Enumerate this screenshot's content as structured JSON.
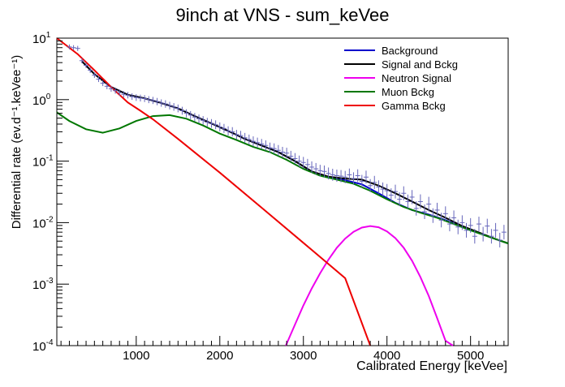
{
  "chart_data": {
    "type": "line",
    "title": "9inch at VNS - sum_keVee",
    "xlabel": "Calibrated Energy [keVee]",
    "ylabel": "Differential rate (ev.d⁻¹.keVee⁻¹)",
    "xlim": [
      50,
      5450
    ],
    "ylim": [
      0.0001,
      10
    ],
    "yscale": "log",
    "x_ticks": [
      1000,
      2000,
      3000,
      4000,
      5000
    ],
    "y_ticks": [
      {
        "value": 10,
        "base": "10",
        "exp": "1"
      },
      {
        "value": 1,
        "base": "10",
        "exp": "0"
      },
      {
        "value": 0.1,
        "base": "10",
        "exp": "-1"
      },
      {
        "value": 0.01,
        "base": "10",
        "exp": "-2"
      },
      {
        "value": 0.001,
        "base": "10",
        "exp": "-3"
      },
      {
        "value": 0.0001,
        "base": "10",
        "exp": "-4"
      }
    ],
    "grid": false,
    "legend_position": "top-right",
    "series": [
      {
        "name": "Background",
        "color": "#0000cc",
        "x": [
          350,
          500,
          700,
          900,
          1100,
          1300,
          1500,
          1700,
          1900,
          2100,
          2300,
          2500,
          2700,
          2900,
          3100,
          3300,
          3500,
          3700,
          3900,
          4100,
          4300,
          4500,
          4700,
          4900,
          5100,
          5300,
          5450
        ],
        "y": [
          4.2,
          2.6,
          1.6,
          1.2,
          1.05,
          0.88,
          0.72,
          0.54,
          0.41,
          0.31,
          0.23,
          0.18,
          0.14,
          0.1,
          0.068,
          0.055,
          0.049,
          0.042,
          0.03,
          0.021,
          0.016,
          0.0135,
          0.011,
          0.0085,
          0.0068,
          0.0054,
          0.0046
        ]
      },
      {
        "name": "Signal and Bckg",
        "color": "#000000",
        "x": [
          350,
          500,
          700,
          900,
          1100,
          1300,
          1500,
          1700,
          1900,
          2100,
          2300,
          2500,
          2700,
          2900,
          3100,
          3300,
          3500,
          3700,
          3900,
          4100,
          4300,
          4500,
          4700,
          4900,
          5100,
          5300,
          5450
        ],
        "y": [
          4.2,
          2.6,
          1.6,
          1.2,
          1.05,
          0.88,
          0.72,
          0.54,
          0.41,
          0.31,
          0.23,
          0.18,
          0.14,
          0.1,
          0.068,
          0.056,
          0.052,
          0.05,
          0.04,
          0.03,
          0.022,
          0.016,
          0.012,
          0.0088,
          0.0069,
          0.0054,
          0.0046
        ]
      },
      {
        "name": "Neutron Signal",
        "color": "#ee00ee",
        "x": [
          2790,
          2900,
          3000,
          3100,
          3200,
          3300,
          3400,
          3500,
          3600,
          3700,
          3800,
          3900,
          4000,
          4100,
          4200,
          4300,
          4400,
          4500,
          4600,
          4700,
          4790
        ],
        "y": [
          0.0001,
          0.00022,
          0.00045,
          0.00085,
          0.0015,
          0.0025,
          0.0039,
          0.0055,
          0.0071,
          0.0083,
          0.0088,
          0.0084,
          0.0072,
          0.0056,
          0.0039,
          0.0024,
          0.0013,
          0.00064,
          0.00028,
          0.00012,
          0.0001
        ]
      },
      {
        "name": "Muon Bckg",
        "color": "#007700",
        "x": [
          50,
          200,
          400,
          600,
          800,
          1000,
          1200,
          1400,
          1600,
          1800,
          2000,
          2200,
          2400,
          2600,
          2800,
          3000,
          3200,
          3400,
          3600,
          3800,
          4000,
          4200,
          4400,
          4600,
          4800,
          5000,
          5200,
          5450
        ],
        "y": [
          0.62,
          0.45,
          0.33,
          0.29,
          0.34,
          0.45,
          0.54,
          0.56,
          0.49,
          0.38,
          0.28,
          0.22,
          0.17,
          0.14,
          0.105,
          0.075,
          0.058,
          0.05,
          0.043,
          0.033,
          0.024,
          0.018,
          0.0145,
          0.012,
          0.0095,
          0.0075,
          0.006,
          0.0046
        ]
      },
      {
        "name": "Gamma Bckg",
        "color": "#ee0000",
        "x": [
          50,
          300,
          500,
          700,
          900,
          1050,
          1200,
          1500,
          2000,
          2500,
          3000,
          3500,
          3800
        ],
        "y": [
          10,
          5.5,
          3.0,
          1.6,
          0.9,
          0.66,
          0.48,
          0.23,
          0.065,
          0.0175,
          0.0047,
          0.00125,
          0.0001
        ]
      }
    ],
    "data_points": {
      "color": "#6666bb",
      "x": [
        200,
        250,
        300,
        350,
        400,
        450,
        500,
        550,
        600,
        650,
        700,
        750,
        800,
        850,
        900,
        950,
        1000,
        1050,
        1100,
        1150,
        1200,
        1250,
        1300,
        1350,
        1400,
        1450,
        1500,
        1550,
        1600,
        1650,
        1700,
        1750,
        1800,
        1850,
        1900,
        1950,
        2000,
        2050,
        2100,
        2150,
        2200,
        2250,
        2300,
        2350,
        2400,
        2450,
        2500,
        2550,
        2600,
        2650,
        2700,
        2750,
        2800,
        2850,
        2900,
        2950,
        3000,
        3050,
        3100,
        3150,
        3200,
        3250,
        3300,
        3350,
        3400,
        3450,
        3500,
        3550,
        3600,
        3650,
        3700,
        3750,
        3800,
        3850,
        3900,
        3950,
        4000,
        4050,
        4100,
        4150,
        4200,
        4250,
        4300,
        4350,
        4400,
        4450,
        4500,
        4550,
        4600,
        4650,
        4700,
        4750,
        4800,
        4850,
        4900,
        4950,
        5000,
        5050,
        5100,
        5150,
        5200,
        5250,
        5300,
        5350,
        5400
      ],
      "y": [
        7.2,
        7.0,
        6.8,
        4.3,
        3.6,
        3.0,
        2.5,
        2.15,
        1.85,
        1.65,
        1.5,
        1.4,
        1.3,
        1.22,
        1.18,
        1.12,
        1.08,
        1.06,
        1.04,
        1.0,
        0.97,
        0.93,
        0.88,
        0.85,
        0.8,
        0.76,
        0.72,
        0.66,
        0.6,
        0.56,
        0.52,
        0.49,
        0.46,
        0.43,
        0.41,
        0.39,
        0.36,
        0.34,
        0.31,
        0.3,
        0.27,
        0.26,
        0.24,
        0.225,
        0.21,
        0.2,
        0.19,
        0.18,
        0.165,
        0.16,
        0.15,
        0.14,
        0.135,
        0.12,
        0.11,
        0.1,
        0.095,
        0.088,
        0.08,
        0.075,
        0.07,
        0.068,
        0.063,
        0.06,
        0.058,
        0.057,
        0.055,
        0.06,
        0.052,
        0.058,
        0.047,
        0.055,
        0.04,
        0.045,
        0.038,
        0.035,
        0.033,
        0.028,
        0.032,
        0.024,
        0.03,
        0.022,
        0.026,
        0.017,
        0.022,
        0.015,
        0.02,
        0.013,
        0.016,
        0.011,
        0.014,
        0.0095,
        0.012,
        0.0085,
        0.01,
        0.0075,
        0.009,
        0.006,
        0.0095,
        0.0065,
        0.0088,
        0.006,
        0.0075,
        0.0052,
        0.007
      ]
    }
  }
}
